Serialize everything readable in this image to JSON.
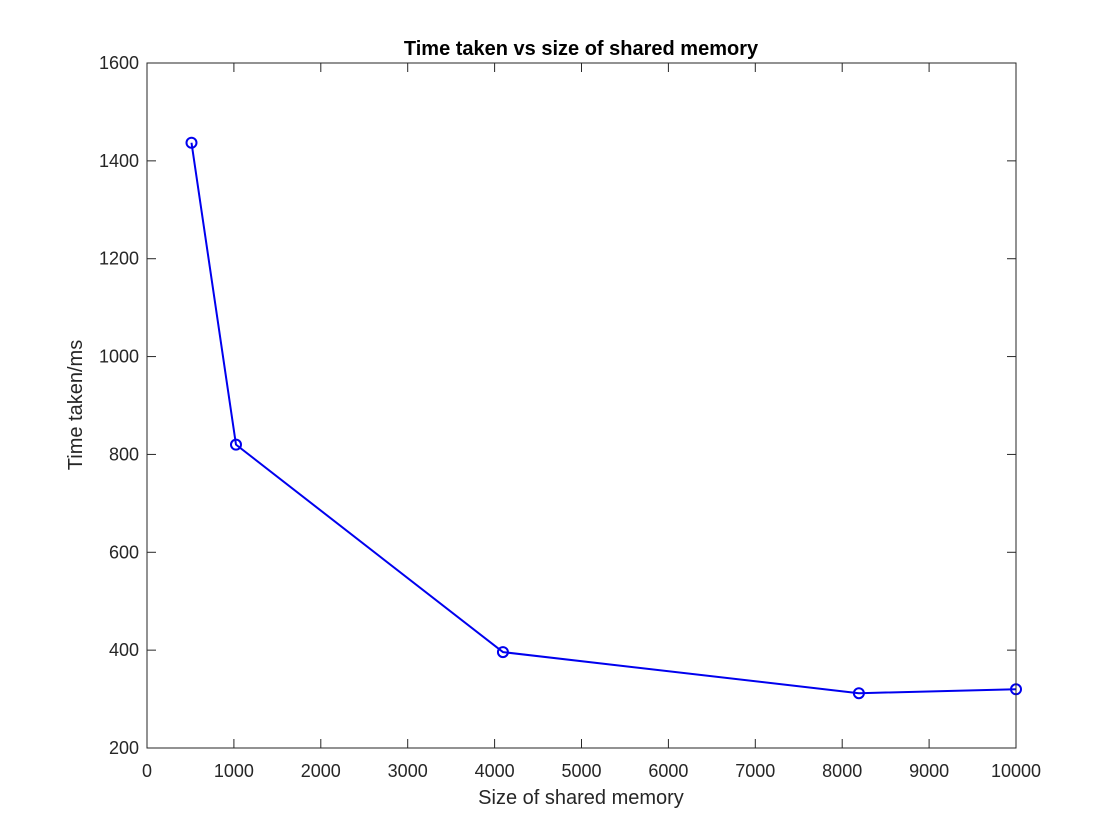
{
  "chart_data": {
    "type": "line",
    "title": "Time taken vs size of shared memory",
    "xlabel": "Size of shared memory",
    "ylabel": "Time taken/ms",
    "xlim": [
      0,
      10000
    ],
    "ylim": [
      200,
      1600
    ],
    "xticks": [
      0,
      1000,
      2000,
      3000,
      4000,
      5000,
      6000,
      7000,
      8000,
      9000,
      10000
    ],
    "yticks": [
      200,
      400,
      600,
      800,
      1000,
      1200,
      1400,
      1600
    ],
    "grid": false,
    "series": [
      {
        "color": "#0000ee",
        "marker": "circle",
        "x": [
          512,
          1024,
          4096,
          8192,
          10000
        ],
        "y": [
          1437,
          820,
          396,
          312,
          320
        ]
      }
    ]
  }
}
